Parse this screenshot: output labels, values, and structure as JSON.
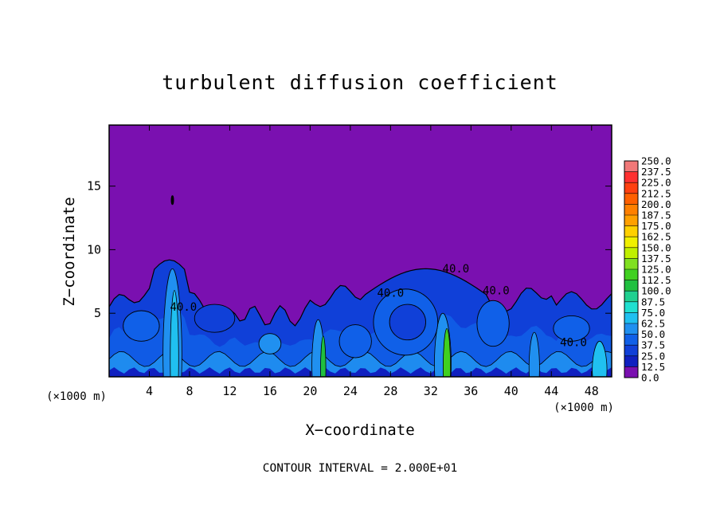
{
  "chart_data": {
    "type": "heatmap",
    "title": "turbulent diffusion coefficient",
    "xlabel": "X−coordinate",
    "ylabel": "Z−coordinate",
    "x_unit_label": "(×1000 m)",
    "y_unit_label": "(×1000 m)",
    "xlim": [
      0,
      50
    ],
    "ylim": [
      0,
      19.8
    ],
    "x_ticks": [
      4,
      8,
      12,
      16,
      20,
      24,
      28,
      32,
      36,
      40,
      44,
      48
    ],
    "y_ticks": [
      5,
      10,
      15
    ],
    "footnote": "CONTOUR INTERVAL = 2.000E+01",
    "contour_labels": [
      {
        "text": "40.0",
        "x": 7.4,
        "z": 5.2
      },
      {
        "text": "40.0",
        "x": 28.0,
        "z": 6.3
      },
      {
        "text": "40.0",
        "x": 34.5,
        "z": 8.2
      },
      {
        "text": "40.0",
        "x": 38.5,
        "z": 6.5
      },
      {
        "text": "40.0",
        "x": 46.2,
        "z": 2.4
      }
    ],
    "colorbar": {
      "levels": [
        "250.0",
        "237.5",
        "225.0",
        "212.5",
        "200.0",
        "187.5",
        "175.0",
        "162.5",
        "150.0",
        "137.5",
        "125.0",
        "112.5",
        "100.0",
        "87.5",
        "75.0",
        "62.5",
        "50.0",
        "37.5",
        "25.0",
        "12.5",
        "0.0"
      ],
      "colors": [
        "#f07878",
        "#ff3030",
        "#ff4010",
        "#ff6000",
        "#ff8000",
        "#ffa000",
        "#ffd000",
        "#f0f000",
        "#c0f000",
        "#80e020",
        "#40d020",
        "#20c040",
        "#20d090",
        "#20e0d0",
        "#20c0f0",
        "#2090f0",
        "#1060e8",
        "#1040d8",
        "#1020c0",
        "#7a10b0"
      ]
    }
  }
}
